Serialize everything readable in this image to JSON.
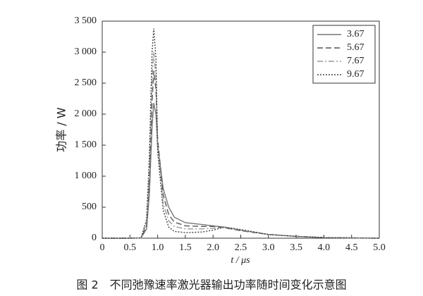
{
  "chart_data": {
    "type": "line",
    "caption": "图 2　不同弛豫速率激光器输出功率随时间变化示意图",
    "xlabel": "t / μs",
    "ylabel": "功率 / W",
    "x": [
      0,
      0.5,
      0.7,
      0.8,
      0.85,
      0.9,
      0.93,
      0.97,
      1.0,
      1.1,
      1.2,
      1.3,
      1.5,
      1.8,
      2.0,
      2.2,
      2.5,
      3.0,
      3.5,
      4.0,
      4.5,
      5.0
    ],
    "series": [
      {
        "name": "3.67",
        "color": "#777777",
        "dash": "none",
        "values": [
          0,
          0,
          5,
          150,
          700,
          1800,
          2180,
          2000,
          1500,
          800,
          500,
          340,
          250,
          220,
          200,
          180,
          130,
          60,
          30,
          10,
          5,
          0
        ]
      },
      {
        "name": "5.67",
        "color": "#555555",
        "dash": "8 4",
        "values": [
          0,
          0,
          5,
          200,
          900,
          2200,
          2700,
          2400,
          1600,
          700,
          380,
          260,
          200,
          190,
          190,
          170,
          120,
          60,
          30,
          10,
          5,
          0
        ]
      },
      {
        "name": "7.67",
        "color": "#999999",
        "dash": "8 3 2 3",
        "values": [
          0,
          0,
          5,
          250,
          1100,
          2600,
          3000,
          2600,
          1500,
          550,
          280,
          190,
          150,
          150,
          160,
          175,
          130,
          60,
          30,
          10,
          5,
          0
        ]
      },
      {
        "name": "9.67",
        "color": "#444444",
        "dash": "2 2",
        "values": [
          0,
          0,
          5,
          300,
          1300,
          3000,
          3380,
          2900,
          1400,
          450,
          180,
          110,
          90,
          100,
          130,
          180,
          140,
          60,
          30,
          10,
          5,
          0
        ]
      }
    ],
    "xlim": [
      0,
      5
    ],
    "ylim": [
      0,
      3500
    ],
    "xticks": [
      0,
      0.5,
      {
        "value": 1,
        "label": "1.0"
      },
      1.5,
      {
        "value": 2,
        "label": "2.0"
      },
      2.5,
      {
        "value": 3,
        "label": "3.0"
      },
      3.5,
      {
        "value": 4,
        "label": "4.0"
      },
      4.5,
      {
        "value": 5,
        "label": "5.0"
      }
    ],
    "yticks": [
      0,
      500,
      {
        "value": 1000,
        "label": "1 000"
      },
      {
        "value": 1500,
        "label": "1 500"
      },
      {
        "value": 2000,
        "label": "2 000"
      },
      {
        "value": 2500,
        "label": "2 500"
      },
      {
        "value": 3000,
        "label": "3 000"
      },
      {
        "value": 3500,
        "label": "3 500"
      }
    ],
    "legend": "upper right",
    "grid": false
  }
}
